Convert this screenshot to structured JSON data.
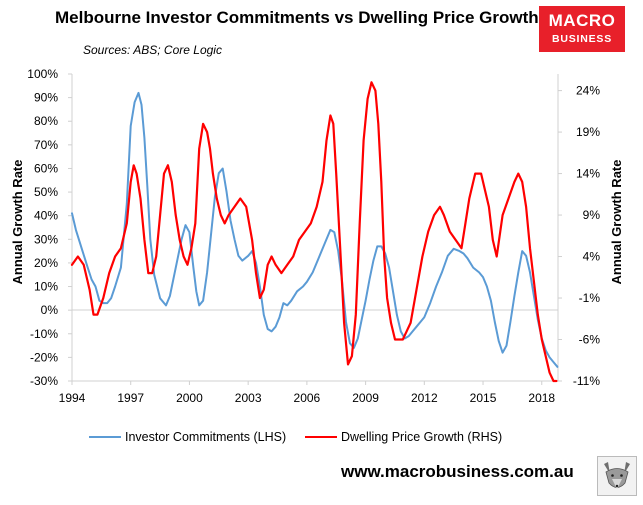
{
  "header": {
    "title": "Melbourne Investor Commitments vs Dwelling Price Growth",
    "subtitle": "Sources: ABS; Core Logic"
  },
  "logo": {
    "line1": "MACRO",
    "line2": "BUSINESS"
  },
  "footer": {
    "url": "www.macrobusiness.com.au"
  },
  "colors": {
    "investor": "#5b9bd5",
    "dwelling": "#ff0000",
    "logo_bg": "#e8202a"
  },
  "icons": {
    "footer_mascot": "wolf-icon"
  },
  "chart_data": {
    "type": "line",
    "title": "Melbourne Investor Commitments vs Dwelling Price Growth",
    "xlabel": "",
    "ylabel_left": "Annual Growth Rate",
    "ylabel_right": "Annual Growth Rate",
    "x_range": [
      1994,
      2018.83
    ],
    "x_ticks": [
      "1994",
      "1997",
      "2000",
      "2003",
      "2006",
      "2009",
      "2012",
      "2015",
      "2018"
    ],
    "y_left_range": [
      -30,
      100
    ],
    "y_left_ticks": [
      "100%",
      "90%",
      "80%",
      "70%",
      "60%",
      "50%",
      "40%",
      "30%",
      "20%",
      "10%",
      "0%",
      "-10%",
      "-20%",
      "-30%"
    ],
    "y_right_range": [
      -11,
      26
    ],
    "y_right_ticks": [
      "24%",
      "19%",
      "14%",
      "9%",
      "4%",
      "-1%",
      "-6%",
      "-11%"
    ],
    "grid": false,
    "legend_position": "bottom",
    "series": [
      {
        "name": "Investor Commitments (LHS)",
        "axis": "left",
        "x": [
          1994.0,
          1994.2,
          1994.5,
          1994.8,
          1995.0,
          1995.2,
          1995.4,
          1995.6,
          1995.8,
          1996.0,
          1996.2,
          1996.5,
          1996.8,
          1997.0,
          1997.2,
          1997.4,
          1997.55,
          1997.7,
          1997.85,
          1998.0,
          1998.2,
          1998.5,
          1998.8,
          1999.0,
          1999.2,
          1999.4,
          1999.6,
          1999.8,
          2000.0,
          2000.2,
          2000.35,
          2000.5,
          2000.7,
          2000.9,
          2001.1,
          2001.3,
          2001.5,
          2001.7,
          2001.9,
          2002.1,
          2002.3,
          2002.5,
          2002.7,
          2003.0,
          2003.2,
          2003.4,
          2003.6,
          2003.8,
          2004.0,
          2004.2,
          2004.4,
          2004.6,
          2004.8,
          2005.0,
          2005.2,
          2005.5,
          2005.8,
          2006.0,
          2006.3,
          2006.6,
          2006.9,
          2007.2,
          2007.4,
          2007.6,
          2007.8,
          2008.0,
          2008.2,
          2008.4,
          2008.6,
          2008.8,
          2009.0,
          2009.2,
          2009.4,
          2009.6,
          2009.8,
          2010.0,
          2010.2,
          2010.4,
          2010.6,
          2010.8,
          2011.0,
          2011.2,
          2011.4,
          2011.6,
          2011.8,
          2012.0,
          2012.3,
          2012.6,
          2012.9,
          2013.2,
          2013.5,
          2013.8,
          2014.0,
          2014.2,
          2014.5,
          2014.8,
          2015.0,
          2015.2,
          2015.4,
          2015.6,
          2015.8,
          2016.0,
          2016.2,
          2016.4,
          2016.6,
          2016.8,
          2017.0,
          2017.2,
          2017.4,
          2017.6,
          2017.8,
          2018.0,
          2018.2,
          2018.4,
          2018.6,
          2018.8
        ],
        "values": [
          41,
          34,
          26,
          18,
          13,
          10,
          4,
          3,
          3,
          5,
          10,
          18,
          45,
          78,
          88,
          92,
          87,
          73,
          52,
          30,
          15,
          5,
          2,
          6,
          14,
          22,
          30,
          36,
          33,
          18,
          8,
          2,
          4,
          16,
          32,
          48,
          58,
          60,
          50,
          38,
          30,
          23,
          21,
          23,
          25,
          20,
          10,
          -2,
          -8,
          -9,
          -7,
          -3,
          3,
          2,
          4,
          8,
          10,
          12,
          16,
          22,
          28,
          34,
          33,
          25,
          12,
          -5,
          -14,
          -16,
          -12,
          -4,
          4,
          13,
          21,
          27,
          27,
          24,
          18,
          8,
          -2,
          -9,
          -12,
          -11,
          -9,
          -7,
          -5,
          -3,
          3,
          10,
          16,
          23,
          26,
          25,
          24,
          22,
          18,
          16,
          14,
          10,
          4,
          -5,
          -13,
          -18,
          -15,
          -5,
          6,
          16,
          25,
          23,
          16,
          6,
          -4,
          -12,
          -17,
          -20,
          -22,
          -24
        ]
      },
      {
        "name": "Dwelling Price Growth (RHS)",
        "axis": "right",
        "x": [
          1994.0,
          1994.3,
          1994.6,
          1994.9,
          1995.1,
          1995.3,
          1995.6,
          1995.9,
          1996.2,
          1996.5,
          1996.8,
          1997.0,
          1997.15,
          1997.3,
          1997.5,
          1997.7,
          1997.9,
          1998.1,
          1998.3,
          1998.5,
          1998.7,
          1998.9,
          1999.1,
          1999.3,
          1999.5,
          1999.7,
          1999.9,
          2000.1,
          2000.3,
          2000.5,
          2000.7,
          2000.9,
          2001.05,
          2001.2,
          2001.4,
          2001.6,
          2001.8,
          2002.0,
          2002.3,
          2002.6,
          2002.9,
          2003.2,
          2003.4,
          2003.6,
          2003.8,
          2004.0,
          2004.2,
          2004.4,
          2004.7,
          2005.0,
          2005.3,
          2005.6,
          2005.9,
          2006.2,
          2006.5,
          2006.8,
          2007.0,
          2007.2,
          2007.35,
          2007.5,
          2007.7,
          2007.9,
          2008.1,
          2008.3,
          2008.5,
          2008.7,
          2008.9,
          2009.1,
          2009.3,
          2009.5,
          2009.65,
          2009.8,
          2009.95,
          2010.1,
          2010.3,
          2010.5,
          2010.7,
          2010.9,
          2011.1,
          2011.3,
          2011.6,
          2011.9,
          2012.2,
          2012.5,
          2012.8,
          2013.0,
          2013.3,
          2013.6,
          2013.9,
          2014.1,
          2014.3,
          2014.6,
          2014.9,
          2015.1,
          2015.3,
          2015.5,
          2015.7,
          2016.0,
          2016.3,
          2016.6,
          2016.8,
          2017.0,
          2017.2,
          2017.4,
          2017.6,
          2017.8,
          2018.0,
          2018.2,
          2018.4,
          2018.6,
          2018.75
        ],
        "values": [
          3,
          4,
          3,
          0,
          -3,
          -3,
          -1,
          2,
          4,
          5,
          8,
          13,
          15,
          14,
          11,
          6,
          2,
          2,
          4,
          9,
          14,
          15,
          13,
          9,
          6,
          4,
          3,
          5,
          8,
          17,
          20,
          19,
          17,
          14,
          11,
          9,
          8,
          9,
          10,
          11,
          10,
          6,
          2,
          -1,
          0,
          3,
          4,
          3,
          2,
          3,
          4,
          6,
          7,
          8,
          10,
          13,
          18,
          21,
          20,
          14,
          5,
          -4,
          -9,
          -8,
          -3,
          8,
          18,
          23,
          25,
          24,
          20,
          13,
          4,
          -1,
          -4,
          -6,
          -6,
          -6,
          -5,
          -4,
          0,
          4,
          7,
          9,
          10,
          9,
          7,
          6,
          5,
          8,
          11,
          14,
          14,
          12,
          10,
          6,
          4,
          9,
          11,
          13,
          14,
          13,
          10,
          5,
          1,
          -3,
          -6,
          -8,
          -10,
          -11,
          -11
        ]
      }
    ]
  }
}
